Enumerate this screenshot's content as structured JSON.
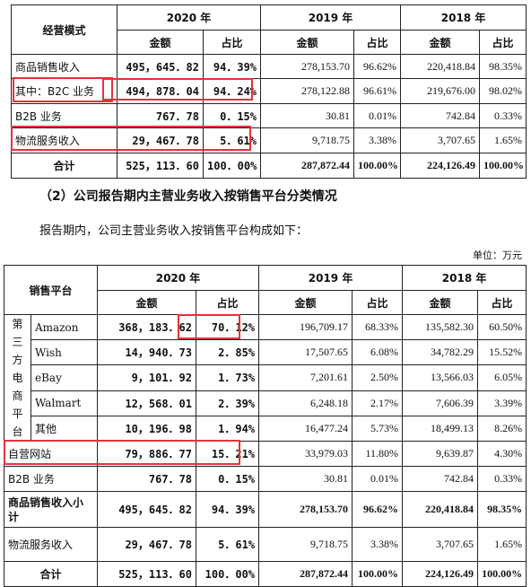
{
  "table1": {
    "header": {
      "col0": "经营模式",
      "y2020": "2020 年",
      "y2019": "2019 年",
      "y2018": "2018 年",
      "amount": "金额",
      "ratio": "占比"
    },
    "rows": [
      {
        "label": "商品销售收入",
        "v2020": "495，645．82",
        "r2020": "94．39%",
        "v2019": "278,153.70",
        "r2019": "96.62%",
        "v2018": "220,418.84",
        "r2018": "98.35%"
      },
      {
        "label": "其中：B2C 业务",
        "v2020": "494，878．04",
        "r2020": "94．24%",
        "v2019": "278,122.88",
        "r2019": "96.61%",
        "v2018": "219,676.00",
        "r2018": "98.02%"
      },
      {
        "label": "B2B 业务",
        "v2020": "767．78",
        "r2020": "0．15%",
        "v2019": "30.81",
        "r2019": "0.01%",
        "v2018": "742.84",
        "r2018": "0.33%"
      },
      {
        "label": "物流服务收入",
        "v2020": "29，467．78",
        "r2020": "5．61%",
        "v2019": "9,718.75",
        "r2019": "3.38%",
        "v2018": "3,707.65",
        "r2018": "1.65%"
      },
      {
        "label": "合计",
        "v2020": "525，113．60",
        "r2020": "100．00%",
        "v2019": "287,872.44",
        "r2019": "100.00%",
        "v2018": "224,126.49",
        "r2018": "100.00%"
      }
    ]
  },
  "section_title": "（2）公司报告期内主营业务收入按销售平台分类情况",
  "intro": "报告期内，公司主营业务收入按销售平台构成如下：",
  "unit": "单位：万元",
  "table2": {
    "header": {
      "col0": "销售平台",
      "y2020": "2020 年",
      "y2019": "2019 年",
      "y2018": "2018 年",
      "amount": "金额",
      "ratio": "占比"
    },
    "group_label": "第三方电商平台",
    "group_rows": [
      {
        "label": "Amazon",
        "v2020": "368，183．62",
        "r2020": "70．12%",
        "v2019": "196,709.17",
        "r2019": "68.33%",
        "v2018": "135,582.30",
        "r2018": "60.50%"
      },
      {
        "label": "Wish",
        "v2020": "14，940．73",
        "r2020": "2．85%",
        "v2019": "17,507.65",
        "r2019": "6.08%",
        "v2018": "34,782.29",
        "r2018": "15.52%"
      },
      {
        "label": "eBay",
        "v2020": "9，101．92",
        "r2020": "1．73%",
        "v2019": "7,201.61",
        "r2019": "2.50%",
        "v2018": "13,566.03",
        "r2018": "6.05%"
      },
      {
        "label": "Walmart",
        "v2020": "12，568．01",
        "r2020": "2．39%",
        "v2019": "6,248.18",
        "r2019": "2.17%",
        "v2018": "7,606.39",
        "r2018": "3.39%"
      },
      {
        "label": "其他",
        "v2020": "10，196．98",
        "r2020": "1．94%",
        "v2019": "16,477.24",
        "r2019": "5.73%",
        "v2018": "18,499.13",
        "r2018": "8.26%"
      }
    ],
    "rows": [
      {
        "label": "自营网站",
        "v2020": "79，886．77",
        "r2020": "15．21%",
        "v2019": "33,979.03",
        "r2019": "11.80%",
        "v2018": "9,639.87",
        "r2018": "4.30%"
      },
      {
        "label": "B2B 业务",
        "v2020": "767．78",
        "r2020": "0．15%",
        "v2019": "30.81",
        "r2019": "0.01%",
        "v2018": "742.84",
        "r2018": "0.33%"
      },
      {
        "label": "商品销售收入小计",
        "v2020": "495，645．82",
        "r2020": "94．39%",
        "v2019": "278,153.70",
        "r2019": "96.62%",
        "v2018": "220,418.84",
        "r2018": "98.35%"
      },
      {
        "label": "物流服务收入",
        "v2020": "29，467．78",
        "r2020": "5．61%",
        "v2019": "9,718.75",
        "r2019": "3.38%",
        "v2018": "3,707.65",
        "r2018": "1.65%"
      },
      {
        "label": "合计",
        "v2020": "525，113．60",
        "r2020": "100．00%",
        "v2019": "287,872.44",
        "r2019": "100.00%",
        "v2018": "224,126.49",
        "r2018": "100.00%"
      }
    ]
  },
  "highlight_color": "#e5323a"
}
